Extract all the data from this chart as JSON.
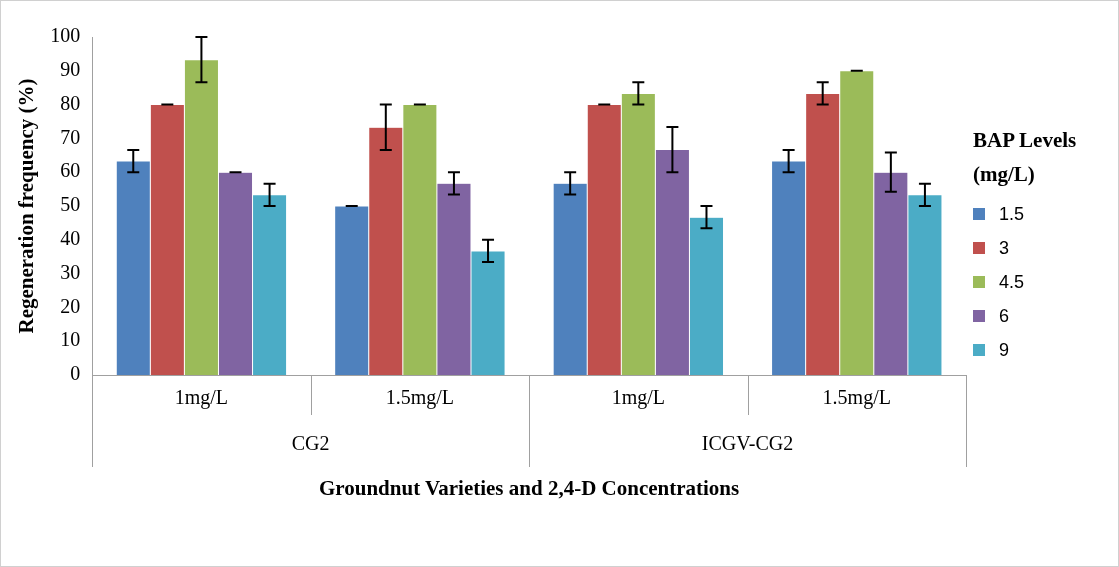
{
  "chart_data": {
    "type": "bar",
    "xlabel": "Groundnut Varieties and 2,4-D Concentrations",
    "ylabel": "Regeneration frequency (%)",
    "legend_title": "BAP Levels (mg/L)",
    "categories": [
      "1mg/L",
      "1.5mg/L",
      "1mg/L",
      "1.5mg/L"
    ],
    "annotations": [
      "CG2",
      "ICGV-CG2"
    ],
    "series": [
      {
        "name": "1.5",
        "color": "#4f81bd",
        "values": [
          63.3,
          50,
          56.7,
          63.3
        ],
        "errors": [
          3.3,
          0,
          3.3,
          3.3
        ]
      },
      {
        "name": "3",
        "color": "#c0504d",
        "values": [
          80,
          73.3,
          80,
          83.3
        ],
        "errors": [
          0,
          6.7,
          0,
          3.3
        ]
      },
      {
        "name": "4.5",
        "color": "#9bbb59",
        "values": [
          93.3,
          80,
          83.3,
          90
        ],
        "errors": [
          6.7,
          0,
          3.3,
          0
        ]
      },
      {
        "name": "6",
        "color": "#8064a2",
        "values": [
          60,
          56.7,
          66.7,
          60
        ],
        "errors": [
          0,
          3.3,
          6.7,
          5.8
        ]
      },
      {
        "name": "9",
        "color": "#4bacc6",
        "values": [
          53.3,
          36.7,
          46.7,
          53.3
        ],
        "errors": [
          3.3,
          3.3,
          3.3,
          3.3
        ]
      }
    ],
    "ylim": [
      0,
      100
    ],
    "yticks": [
      0,
      10,
      20,
      30,
      40,
      50,
      60,
      70,
      80,
      90,
      100
    ],
    "grid": false,
    "legend": "right"
  }
}
